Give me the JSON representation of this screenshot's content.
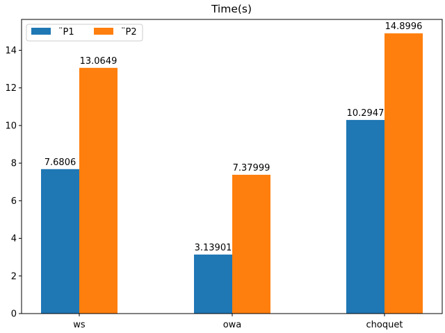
{
  "chart_data": {
    "type": "bar",
    "title": "Time(s)",
    "xlabel": "",
    "ylabel": "",
    "categories": [
      "ws",
      "owa",
      "choquet"
    ],
    "series": [
      {
        "name": "¨P1",
        "values": [
          7.6806,
          3.13901,
          10.2947
        ],
        "labels": [
          "7.6806",
          "3.13901",
          "10.2947"
        ],
        "color": "#1f77b4"
      },
      {
        "name": "¨P2",
        "values": [
          13.0649,
          7.37999,
          14.8996
        ],
        "labels": [
          "13.0649",
          "7.37999",
          "14.8996"
        ],
        "color": "#ff7f0e"
      }
    ],
    "ylim": [
      0,
      15.64
    ],
    "yticks": [
      0,
      2,
      4,
      6,
      8,
      10,
      12,
      14
    ],
    "ytick_labels": [
      "0",
      "2",
      "4",
      "6",
      "8",
      "10",
      "12",
      "14"
    ],
    "grid": false,
    "legend_position": "top-left"
  }
}
